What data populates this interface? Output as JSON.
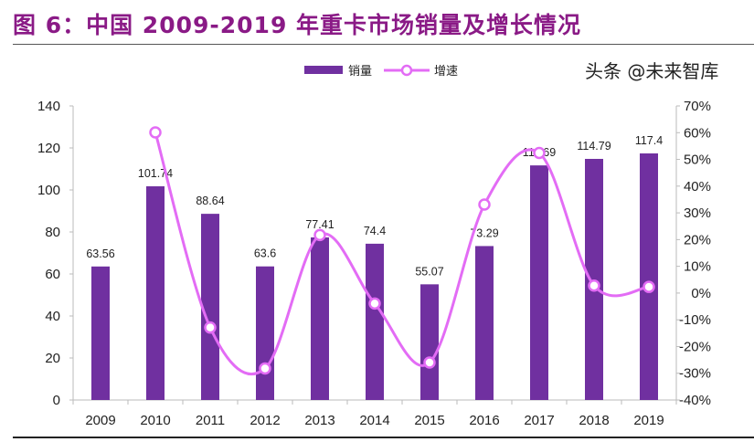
{
  "title": "图 6：中国 2009-2019 年重卡市场销量及增长情况",
  "watermark": "头条 @未来智库",
  "chart_data": {
    "type": "bar+line",
    "categories": [
      "2009",
      "2010",
      "2011",
      "2012",
      "2013",
      "2014",
      "2015",
      "2016",
      "2017",
      "2018",
      "2019"
    ],
    "series": [
      {
        "name": "销量",
        "type": "bar",
        "axis": "left",
        "color": "#7030a0",
        "values": [
          63.56,
          101.74,
          88.64,
          63.6,
          77.41,
          74.4,
          55.07,
          73.29,
          111.69,
          114.79,
          117.4
        ],
        "labels": [
          "63.56",
          "101.74",
          "88.64",
          "63.6",
          "77.41",
          "74.4",
          "55.07",
          "73.29",
          "111.69",
          "114.79",
          "117.4"
        ]
      },
      {
        "name": "增速",
        "type": "line",
        "axis": "right",
        "color": "#e36cf5",
        "values": [
          null,
          60.1,
          -12.9,
          -28.2,
          21.7,
          -3.9,
          -26.0,
          33.1,
          52.4,
          2.8,
          2.3
        ]
      }
    ],
    "left_axis": {
      "min": 0,
      "max": 140,
      "ticks": [
        "0",
        "20",
        "40",
        "60",
        "80",
        "100",
        "120",
        "140"
      ]
    },
    "right_axis": {
      "min": -40,
      "max": 70,
      "ticks": [
        "-40%",
        "-30%",
        "-20%",
        "-10%",
        "0%",
        "10%",
        "20%",
        "30%",
        "40%",
        "50%",
        "60%",
        "70%"
      ]
    },
    "legend_position": "top-center",
    "grid": false
  }
}
